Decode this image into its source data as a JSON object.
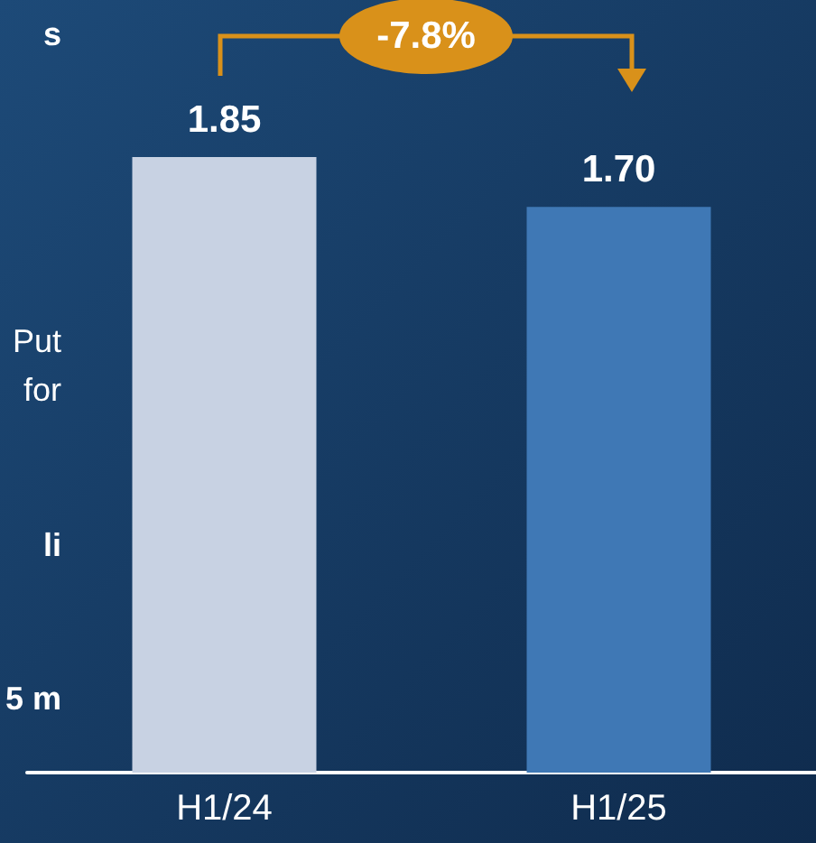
{
  "chart_data": {
    "type": "bar",
    "categories": [
      "H1/24",
      "H1/25"
    ],
    "values": [
      1.85,
      1.7
    ],
    "colors": [
      "#c8d2e3",
      "#3f78b5"
    ],
    "value_labels": [
      "1.85",
      "1.70"
    ],
    "grid": false,
    "annotations": [
      "-7.8%",
      "s",
      "Put",
      "for",
      "li",
      "5 m"
    ]
  }
}
